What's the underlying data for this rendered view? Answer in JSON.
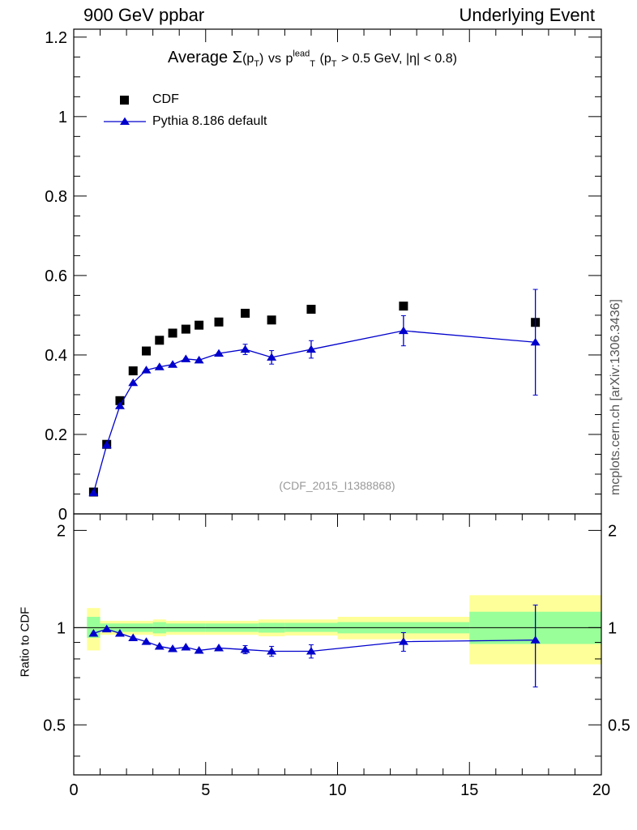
{
  "header": {
    "left": "900 GeV ppbar",
    "right": "Underlying Event",
    "side_label": "mcplots.cern.ch [arXiv:1306.3436]",
    "reference": "(CDF_2015_I1388868)"
  },
  "colors": {
    "data": "#000000",
    "mc": "#0000cc",
    "band_outer": "#ffff99",
    "band_inner": "#99ff99"
  },
  "chart_data": [
    {
      "type": "scatter",
      "panel": "main",
      "title": "Average Σ(p_T) vs p_T^lead (p_T > 0.5 GeV, |η| < 0.8)",
      "title_parts": {
        "t1": "Average",
        "sigma": "Σ",
        "pt_a": "(p",
        "pt_a_sub": "T",
        "pt_a_close": ")",
        "vs": "vs",
        "p_lead": "p",
        "p_lead_sup": "lead",
        "p_lead_sub": "T",
        "cut_open": "(p",
        "cut_sub": "T",
        "cut_rest": "> 0.5 GeV, |η| < 0.8)"
      },
      "xlim": [
        0,
        20
      ],
      "ylim": [
        0,
        1.22
      ],
      "y_ticks": [
        "0",
        "0.2",
        "0.4",
        "0.6",
        "0.8",
        "1",
        "1.2"
      ],
      "legend_position": "top-left",
      "series": [
        {
          "name": "CDF",
          "marker": "square",
          "x": [
            0.75,
            1.25,
            1.75,
            2.25,
            2.75,
            3.25,
            3.75,
            4.25,
            4.75,
            5.5,
            6.5,
            7.5,
            9.0,
            12.5,
            17.5
          ],
          "y": [
            0.055,
            0.175,
            0.285,
            0.36,
            0.41,
            0.437,
            0.455,
            0.465,
            0.475,
            0.483,
            0.505,
            0.488,
            0.515,
            0.523,
            0.482
          ]
        },
        {
          "name": "Pythia 8.186 default",
          "marker": "triangle",
          "x": [
            0.75,
            1.25,
            1.75,
            2.25,
            2.75,
            3.25,
            3.75,
            4.25,
            4.75,
            5.5,
            6.5,
            7.5,
            9.0,
            12.5,
            17.5
          ],
          "y": [
            0.053,
            0.173,
            0.272,
            0.33,
            0.362,
            0.37,
            0.376,
            0.39,
            0.387,
            0.404,
            0.414,
            0.394,
            0.414,
            0.461,
            0.432
          ],
          "yerr": [
            0.002,
            0.003,
            0.004,
            0.005,
            0.005,
            0.005,
            0.005,
            0.005,
            0.005,
            0.006,
            0.013,
            0.017,
            0.022,
            0.038,
            0.133
          ]
        }
      ]
    },
    {
      "type": "scatter",
      "panel": "ratio",
      "ylabel": "Ratio to CDF",
      "xlim": [
        0,
        20
      ],
      "ylim": [
        0.35,
        2.25
      ],
      "x_ticks": [
        "0",
        "5",
        "10",
        "15",
        "20"
      ],
      "y_ticks": [
        "0.5",
        "1",
        "2"
      ],
      "reference_line": 1,
      "bands": [
        {
          "x0": 0.5,
          "x1": 1.0,
          "inner": [
            0.93,
            1.08
          ],
          "outer": [
            0.85,
            1.15
          ]
        },
        {
          "x0": 1.0,
          "x1": 3.0,
          "inner": [
            0.97,
            1.03
          ],
          "outer": [
            0.95,
            1.05
          ]
        },
        {
          "x0": 3.0,
          "x1": 3.5,
          "inner": [
            0.96,
            1.04
          ],
          "outer": [
            0.94,
            1.06
          ]
        },
        {
          "x0": 3.5,
          "x1": 5.0,
          "inner": [
            0.97,
            1.03
          ],
          "outer": [
            0.95,
            1.05
          ]
        },
        {
          "x0": 5.0,
          "x1": 7.0,
          "inner": [
            0.97,
            1.03
          ],
          "outer": [
            0.95,
            1.05
          ]
        },
        {
          "x0": 7.0,
          "x1": 8.0,
          "inner": [
            0.965,
            1.035
          ],
          "outer": [
            0.94,
            1.06
          ]
        },
        {
          "x0": 8.0,
          "x1": 10.0,
          "inner": [
            0.97,
            1.035
          ],
          "outer": [
            0.945,
            1.06
          ]
        },
        {
          "x0": 10.0,
          "x1": 15.0,
          "inner": [
            0.96,
            1.04
          ],
          "outer": [
            0.92,
            1.08
          ]
        },
        {
          "x0": 15.0,
          "x1": 20.0,
          "inner": [
            0.89,
            1.12
          ],
          "outer": [
            0.77,
            1.26
          ]
        }
      ],
      "series": [
        {
          "name": "Pythia 8.186 default",
          "marker": "triangle",
          "x": [
            0.75,
            1.25,
            1.75,
            2.25,
            2.75,
            3.25,
            3.75,
            4.25,
            4.75,
            5.5,
            6.5,
            7.5,
            9.0,
            12.5,
            17.5
          ],
          "y": [
            0.96,
            0.99,
            0.96,
            0.93,
            0.905,
            0.875,
            0.86,
            0.87,
            0.85,
            0.865,
            0.855,
            0.845,
            0.845,
            0.905,
            0.915
          ],
          "yerr": [
            0.01,
            0.01,
            0.01,
            0.01,
            0.01,
            0.01,
            0.01,
            0.01,
            0.01,
            0.012,
            0.025,
            0.03,
            0.04,
            0.06,
            0.26
          ]
        }
      ]
    }
  ]
}
